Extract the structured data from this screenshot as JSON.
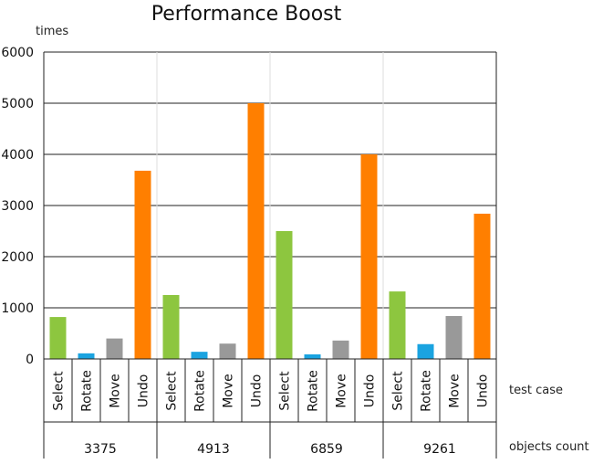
{
  "chart_data": {
    "type": "bar",
    "title": "Performance Boost",
    "ylabel": "times",
    "xlabel": "test case",
    "group_axis_label": "objects count",
    "ylim": [
      0,
      6000
    ],
    "yticks": [
      0,
      1000,
      2000,
      3000,
      4000,
      5000,
      6000
    ],
    "categories": [
      "Select",
      "Rotate",
      "Move",
      "Undo"
    ],
    "groups": [
      "3375",
      "4913",
      "6859",
      "9261"
    ],
    "category_colors": {
      "Select": "#8dc63f",
      "Rotate": "#1aa3e0",
      "Move": "#999999",
      "Undo": "#ff7f00"
    },
    "values": {
      "3375": [
        820,
        110,
        400,
        3680
      ],
      "4913": [
        1250,
        140,
        300,
        5000
      ],
      "6859": [
        2500,
        90,
        360,
        4000
      ],
      "9261": [
        1320,
        290,
        840,
        2840
      ]
    },
    "grid": true,
    "legend": "none"
  }
}
